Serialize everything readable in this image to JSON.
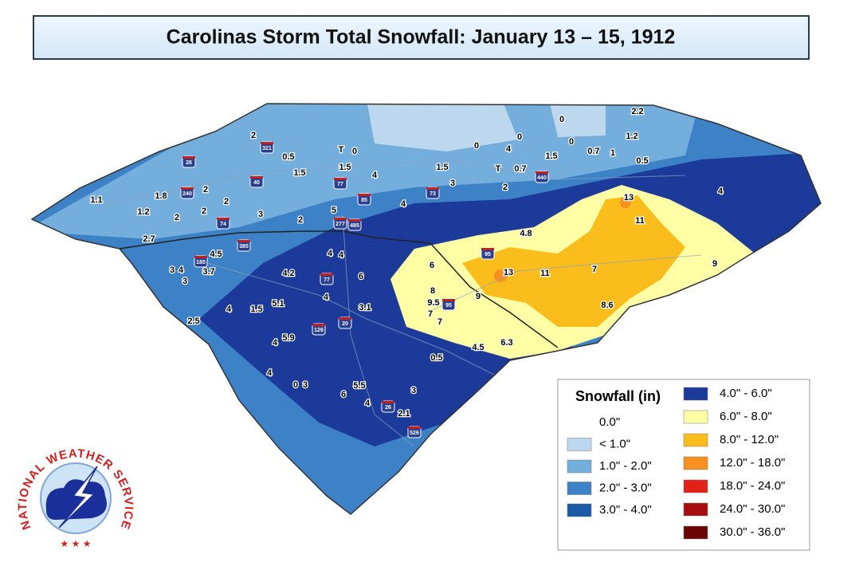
{
  "title": "Carolinas Storm Total Snowfall: January 13 – 15, 1912",
  "legend": {
    "title": "Snowfall (in)",
    "entries": [
      {
        "label": "0.0\"",
        "color": "#ffffff"
      },
      {
        "label": "< 1.0\"",
        "color": "#bcd7ee"
      },
      {
        "label": "1.0\" - 2.0\"",
        "color": "#74aedc"
      },
      {
        "label": "2.0\" - 3.0\"",
        "color": "#3d82c6"
      },
      {
        "label": "3.0\" - 4.0\"",
        "color": "#1c5aa8"
      },
      {
        "label": "4.0\" - 6.0\"",
        "color": "#1b3a9a"
      },
      {
        "label": "6.0\" - 8.0\"",
        "color": "#ffffa6"
      },
      {
        "label": "8.0\" - 12.0\"",
        "color": "#fbbd1c"
      },
      {
        "label": "12.0\" - 18.0\"",
        "color": "#f7901e"
      },
      {
        "label": "18.0\" - 24.0\"",
        "color": "#e32119"
      },
      {
        "label": "24.0\" - 30.0\"",
        "color": "#a80d0d"
      },
      {
        "label": "30.0\" - 36.0\"",
        "color": "#6a0606"
      }
    ]
  },
  "station_labels": [
    "2",
    "0.5",
    "T",
    "0",
    "1.5",
    "1.5",
    "4",
    "1.5",
    "3",
    "0",
    "4",
    "0",
    "1.5",
    "0",
    "0",
    "0.7",
    "1",
    "2.2",
    "1.2",
    "0.5",
    "T",
    "0.7",
    "2",
    "1.1",
    "1.8",
    "1.2",
    "2",
    "2",
    "2",
    "2",
    "3",
    "2",
    "5",
    "4",
    "2.7",
    "4.5",
    "3",
    "4",
    "3.7",
    "3",
    "4",
    "4",
    "4.2",
    "6",
    "4",
    "5.1",
    "1.5",
    "4",
    "2.5",
    "3.1",
    "4",
    "5.9",
    "4",
    "0",
    "3",
    "6",
    "5.5",
    "4",
    "3",
    "2.1",
    "0.5",
    "4.5",
    "6.3",
    "6",
    "8",
    "9.5",
    "7",
    "7",
    "9",
    "13",
    "11",
    "7",
    "8.6",
    "4.8",
    "13",
    "11",
    "4",
    "9"
  ],
  "shields": [
    "26",
    "321",
    "40",
    "240",
    "77",
    "85",
    "73",
    "440",
    "74",
    "277",
    "485",
    "95",
    "385",
    "185",
    "77",
    "20",
    "126",
    "95",
    "26",
    "526"
  ],
  "logo": "NATIONAL WEATHER SERVICE"
}
